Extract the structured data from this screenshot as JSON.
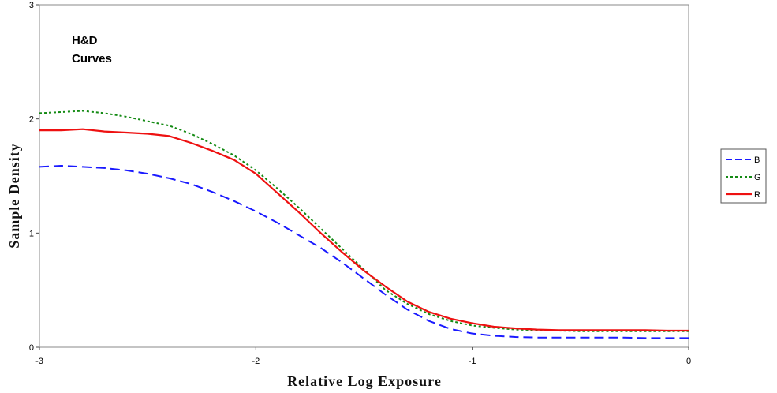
{
  "chart_data": {
    "type": "line",
    "title_lines": [
      "H&D",
      "Curves"
    ],
    "xlabel": "Relative Log Exposure",
    "ylabel": "Sample Density",
    "xlim": [
      -3,
      0
    ],
    "ylim": [
      0,
      3
    ],
    "x_ticks": [
      "-3",
      "-2",
      "-1",
      "0"
    ],
    "y_ticks": [
      "0",
      "1",
      "2",
      "3"
    ],
    "legend_position": "right",
    "grid": false,
    "series": [
      {
        "name": "B",
        "color": "#1a1aff",
        "style": "dashed",
        "x": [
          -3.0,
          -2.9,
          -2.8,
          -2.7,
          -2.6,
          -2.5,
          -2.4,
          -2.3,
          -2.2,
          -2.1,
          -2.0,
          -1.9,
          -1.8,
          -1.7,
          -1.6,
          -1.5,
          -1.4,
          -1.3,
          -1.2,
          -1.1,
          -1.0,
          -0.9,
          -0.8,
          -0.7,
          -0.6,
          -0.5,
          -0.4,
          -0.3,
          -0.2,
          -0.1,
          0.0
        ],
        "values": [
          1.58,
          1.59,
          1.58,
          1.57,
          1.55,
          1.52,
          1.48,
          1.43,
          1.36,
          1.28,
          1.19,
          1.09,
          0.98,
          0.87,
          0.74,
          0.6,
          0.46,
          0.33,
          0.23,
          0.16,
          0.12,
          0.1,
          0.09,
          0.085,
          0.085,
          0.085,
          0.085,
          0.085,
          0.08,
          0.08,
          0.08
        ]
      },
      {
        "name": "G",
        "color": "#138a13",
        "style": "dotted",
        "x": [
          -3.0,
          -2.9,
          -2.8,
          -2.7,
          -2.6,
          -2.5,
          -2.4,
          -2.3,
          -2.2,
          -2.1,
          -2.0,
          -1.9,
          -1.8,
          -1.7,
          -1.6,
          -1.5,
          -1.4,
          -1.3,
          -1.2,
          -1.1,
          -1.0,
          -0.9,
          -0.8,
          -0.7,
          -0.6,
          -0.5,
          -0.4,
          -0.3,
          -0.2,
          -0.1,
          0.0
        ],
        "values": [
          2.05,
          2.06,
          2.07,
          2.05,
          2.02,
          1.98,
          1.94,
          1.87,
          1.78,
          1.68,
          1.55,
          1.39,
          1.22,
          1.04,
          0.86,
          0.68,
          0.5,
          0.38,
          0.29,
          0.23,
          0.19,
          0.17,
          0.155,
          0.15,
          0.145,
          0.14,
          0.14,
          0.14,
          0.14,
          0.14,
          0.14
        ]
      },
      {
        "name": "R",
        "color": "#ee1111",
        "style": "solid",
        "x": [
          -3.0,
          -2.9,
          -2.8,
          -2.7,
          -2.6,
          -2.5,
          -2.4,
          -2.3,
          -2.2,
          -2.1,
          -2.0,
          -1.9,
          -1.8,
          -1.7,
          -1.6,
          -1.5,
          -1.4,
          -1.3,
          -1.2,
          -1.1,
          -1.0,
          -0.9,
          -0.8,
          -0.7,
          -0.6,
          -0.5,
          -0.4,
          -0.3,
          -0.2,
          -0.1,
          0.0
        ],
        "values": [
          1.9,
          1.9,
          1.91,
          1.89,
          1.88,
          1.87,
          1.85,
          1.79,
          1.72,
          1.64,
          1.52,
          1.35,
          1.18,
          1.0,
          0.83,
          0.67,
          0.53,
          0.4,
          0.31,
          0.25,
          0.21,
          0.18,
          0.165,
          0.155,
          0.15,
          0.15,
          0.15,
          0.15,
          0.15,
          0.145,
          0.145
        ]
      }
    ]
  }
}
